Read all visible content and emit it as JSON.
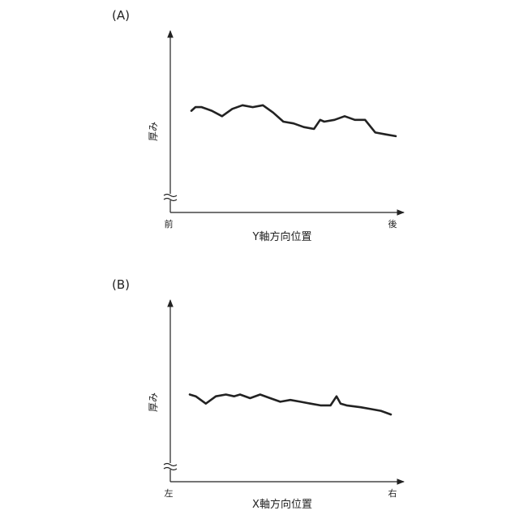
{
  "colors": {
    "line": "#222222",
    "axis": "#222222"
  },
  "chart_data": [
    {
      "type": "line",
      "panel_label": "(A)",
      "ylabel": "厚み",
      "xlabel": "Y軸方向位置",
      "x_start_label": "前",
      "x_end_label": "後",
      "y_axis_break": true,
      "x": [
        0.0,
        0.02,
        0.05,
        0.1,
        0.15,
        0.2,
        0.25,
        0.3,
        0.35,
        0.4,
        0.45,
        0.5,
        0.55,
        0.6,
        0.63,
        0.65,
        0.7,
        0.75,
        0.8,
        0.85,
        0.9,
        0.95,
        1.0
      ],
      "values": [
        0.56,
        0.58,
        0.58,
        0.56,
        0.53,
        0.57,
        0.59,
        0.58,
        0.59,
        0.55,
        0.5,
        0.49,
        0.47,
        0.46,
        0.51,
        0.5,
        0.51,
        0.53,
        0.51,
        0.51,
        0.44,
        0.43,
        0.42
      ],
      "grid": false
    },
    {
      "type": "line",
      "panel_label": "(B)",
      "ylabel": "厚み",
      "xlabel": "X軸方向位置",
      "x_start_label": "左",
      "x_end_label": "右",
      "y_axis_break": true,
      "x": [
        0.0,
        0.03,
        0.08,
        0.13,
        0.18,
        0.22,
        0.25,
        0.3,
        0.35,
        0.4,
        0.45,
        0.5,
        0.55,
        0.6,
        0.65,
        0.7,
        0.73,
        0.75,
        0.78,
        0.85,
        0.9,
        0.95,
        1.0
      ],
      "values": [
        0.48,
        0.47,
        0.43,
        0.47,
        0.48,
        0.47,
        0.48,
        0.46,
        0.48,
        0.46,
        0.44,
        0.45,
        0.44,
        0.43,
        0.42,
        0.42,
        0.47,
        0.43,
        0.42,
        0.41,
        0.4,
        0.39,
        0.37
      ],
      "grid": false
    }
  ]
}
